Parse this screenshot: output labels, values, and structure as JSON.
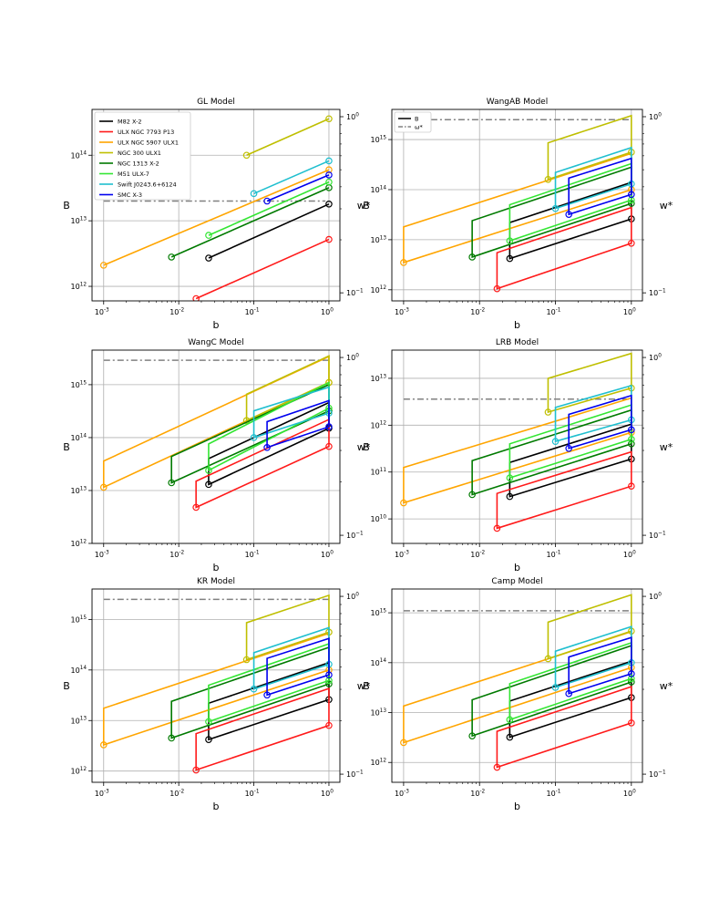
{
  "figure": {
    "legend_entries": [
      {
        "name": "M82 X-2",
        "color": "#000000"
      },
      {
        "name": "ULX NGC 7793 P13",
        "color": "#ff1a1a"
      },
      {
        "name": "ULX NGC 5907 ULX1",
        "color": "#ffa500"
      },
      {
        "name": "NGC 300 ULX1",
        "color": "#bfbf00"
      },
      {
        "name": "NGC 1313 X-2",
        "color": "#007a00"
      },
      {
        "name": "M51 ULX-7",
        "color": "#33e633"
      },
      {
        "name": "Swift J0243.6+6124",
        "color": "#1fbfcf"
      },
      {
        "name": "SMC X-3",
        "color": "#0000ee"
      }
    ],
    "legend_B": [
      {
        "name": "B",
        "style": "solid"
      },
      {
        "name": "ω*",
        "style": "dashdot"
      }
    ]
  },
  "chart_data": [
    {
      "type": "line",
      "title": "GL Model",
      "xlabel": "b",
      "ylabel": "B",
      "y2label": "w*",
      "xlim": [
        0.0007,
        1.4
      ],
      "ylim": [
        600000000000.0,
        500000000000000.0
      ],
      "y2lim": [
        0.09,
        1.1
      ],
      "yticks": [
        "10^12",
        "10^13",
        "10^14"
      ],
      "shape": "line",
      "omega": 20000000000000.0,
      "omega_xmax": 0.9,
      "series": [
        {
          "name": "M82 X-2",
          "b0": 0.025,
          "B0": 2700000000000.0,
          "B1": 18000000000000.0
        },
        {
          "name": "ULX NGC 7793 P13",
          "b0": 0.017,
          "B0": 650000000000.0,
          "B1": 5200000000000.0
        },
        {
          "name": "ULX NGC 5907 ULX1",
          "b0": 0.001,
          "B0": 2100000000000.0,
          "B1": 60000000000000.0
        },
        {
          "name": "NGC 300 ULX1",
          "b0": 0.08,
          "B0": 100000000000000.0,
          "B1": 360000000000000.0
        },
        {
          "name": "NGC 1313 X-2",
          "b0": 0.008,
          "B0": 2800000000000.0,
          "B1": 32000000000000.0
        },
        {
          "name": "M51 ULX-7",
          "b0": 0.025,
          "B0": 6000000000000.0,
          "B1": 39000000000000.0
        },
        {
          "name": "Swift J0243.6+6124",
          "b0": 0.1,
          "B0": 26000000000000.0,
          "B1": 82000000000000.0
        },
        {
          "name": "SMC X-3",
          "b0": 0.15,
          "B0": 20000000000000.0,
          "B1": 50000000000000.0
        }
      ]
    },
    {
      "type": "line",
      "title": "WangAB Model",
      "xlabel": "b",
      "ylabel": "B",
      "y2label": "w*",
      "xlim": [
        0.0007,
        1.4
      ],
      "ylim": [
        600000000000.0,
        4000000000000000.0
      ],
      "y2lim": [
        0.09,
        1.1
      ],
      "yticks": [
        "10^12",
        "10^13",
        "10^14",
        "10^15"
      ],
      "shape": "box",
      "omega": 2500000000000000.0,
      "omega_xmax": 1.0,
      "series": [
        {
          "name": "M82 X-2",
          "b0": 0.025,
          "Blo0": 4200000000000.0,
          "Bhi0": 22000000000000.0,
          "Blo1": 26000000000000.0,
          "Bhi1": 140000000000000.0
        },
        {
          "name": "ULX NGC 7793 P13",
          "b0": 0.017,
          "Blo0": 1050000000000.0,
          "Bhi0": 5500000000000.0,
          "Blo1": 8500000000000.0,
          "Bhi1": 44000000000000.0
        },
        {
          "name": "ULX NGC 5907 ULX1",
          "b0": 0.001,
          "Blo0": 3500000000000.0,
          "Bhi0": 18000000000000.0,
          "Blo1": 100000000000000.0,
          "Bhi1": 530000000000000.0
        },
        {
          "name": "NGC 300 ULX1",
          "b0": 0.08,
          "Blo0": 160000000000000.0,
          "Bhi0": 860000000000000.0,
          "Blo1": 560000000000000.0,
          "Bhi1": 3000000000000000.0
        },
        {
          "name": "NGC 1313 X-2",
          "b0": 0.008,
          "Blo0": 4500000000000.0,
          "Bhi0": 24000000000000.0,
          "Blo1": 53000000000000.0,
          "Bhi1": 280000000000000.0
        },
        {
          "name": "M51 ULX-7",
          "b0": 0.025,
          "Blo0": 9500000000000.0,
          "Bhi0": 50000000000000.0,
          "Blo1": 62000000000000.0,
          "Bhi1": 330000000000000.0
        },
        {
          "name": "Swift J0243.6+6124",
          "b0": 0.1,
          "Blo0": 42000000000000.0,
          "Bhi0": 220000000000000.0,
          "Blo1": 130000000000000.0,
          "Bhi1": 690000000000000.0
        },
        {
          "name": "SMC X-3",
          "b0": 0.15,
          "Blo0": 32000000000000.0,
          "Bhi0": 170000000000000.0,
          "Blo1": 80000000000000.0,
          "Bhi1": 420000000000000.0
        }
      ]
    },
    {
      "type": "line",
      "title": "WangC Model",
      "xlabel": "b",
      "ylabel": "B",
      "y2label": "w*",
      "xlim": [
        0.0007,
        1.4
      ],
      "ylim": [
        1000000000000.0,
        4500000000000000.0
      ],
      "y2lim": [
        0.09,
        1.1
      ],
      "yticks": [
        "10^12",
        "10^13",
        "10^14",
        "10^15"
      ],
      "shape": "box",
      "omega": 2900000000000000.0,
      "omega_xmax": 1.0,
      "series": [
        {
          "name": "M82 X-2",
          "b0": 0.025,
          "Blo0": 13000000000000.0,
          "Bhi0": 40000000000000.0,
          "Blo1": 150000000000000.0,
          "Bhi1": 460000000000000.0
        },
        {
          "name": "ULX NGC 7793 P13",
          "b0": 0.017,
          "Blo0": 4800000000000.0,
          "Bhi0": 15000000000000.0,
          "Blo1": 68000000000000.0,
          "Bhi1": 220000000000000.0
        },
        {
          "name": "ULX NGC 5907 ULX1",
          "b0": 0.001,
          "Blo0": 11500000000000.0,
          "Bhi0": 36000000000000.0,
          "Blo1": 1100000000000000.0,
          "Bhi1": 3400000000000000.0
        },
        {
          "name": "NGC 300 ULX1",
          "b0": 0.08,
          "Blo0": 210000000000000.0,
          "Bhi0": 660000000000000.0,
          "Blo1": 1100000000000000.0,
          "Bhi1": 3500000000000000.0
        },
        {
          "name": "NGC 1313 X-2",
          "b0": 0.008,
          "Blo0": 14000000000000.0,
          "Bhi0": 44000000000000.0,
          "Blo1": 320000000000000.0,
          "Bhi1": 1000000000000000.0
        },
        {
          "name": "M51 ULX-7",
          "b0": 0.025,
          "Blo0": 24000000000000.0,
          "Bhi0": 76000000000000.0,
          "Blo1": 360000000000000.0,
          "Bhi1": 1100000000000000.0
        },
        {
          "name": "Swift J0243.6+6124",
          "b0": 0.1,
          "Blo0": 100000000000000.0,
          "Bhi0": 320000000000000.0,
          "Blo1": 290000000000000.0,
          "Bhi1": 900000000000000.0
        },
        {
          "name": "SMC X-3",
          "b0": 0.15,
          "Blo0": 65000000000000.0,
          "Bhi0": 200000000000000.0,
          "Blo1": 160000000000000.0,
          "Bhi1": 500000000000000.0
        }
      ]
    },
    {
      "type": "line",
      "title": "LRB Model",
      "xlabel": "b",
      "ylabel": "B",
      "y2label": "w*",
      "xlim": [
        0.0007,
        1.4
      ],
      "ylim": [
        3000000000.0,
        40000000000000.0
      ],
      "y2lim": [
        0.09,
        1.1
      ],
      "yticks": [
        "10^10",
        "10^11",
        "10^12",
        "10^13"
      ],
      "shape": "box",
      "omega": 3600000000000.0,
      "omega_xmax": 1.0,
      "series": [
        {
          "name": "M82 X-2",
          "b0": 0.025,
          "Blo0": 30000000000.0,
          "Bhi0": 160000000000.0,
          "Blo1": 190000000000.0,
          "Bhi1": 1050000000000.0
        },
        {
          "name": "ULX NGC 7793 P13",
          "b0": 0.017,
          "Blo0": 6300000000.0,
          "Bhi0": 35000000000.0,
          "Blo1": 50000000000.0,
          "Bhi1": 270000000000.0
        },
        {
          "name": "ULX NGC 5907 ULX1",
          "b0": 0.001,
          "Blo0": 22000000000.0,
          "Bhi0": 125000000000.0,
          "Blo1": 700000000000.0,
          "Bhi1": 3800000000000.0
        },
        {
          "name": "NGC 300 ULX1",
          "b0": 0.08,
          "Blo0": 1900000000000.0,
          "Bhi0": 10000000000000.0,
          "Blo1": 6200000000000.0,
          "Bhi1": 34000000000000.0
        },
        {
          "name": "NGC 1313 X-2",
          "b0": 0.008,
          "Blo0": 33000000000.0,
          "Bhi0": 175000000000.0,
          "Blo1": 400000000000.0,
          "Bhi1": 2100000000000.0
        },
        {
          "name": "M51 ULX-7",
          "b0": 0.025,
          "Blo0": 75000000000.0,
          "Bhi0": 400000000000.0,
          "Blo1": 500000000000.0,
          "Bhi1": 2700000000000.0
        },
        {
          "name": "Swift J0243.6+6124",
          "b0": 0.1,
          "Blo0": 450000000000.0,
          "Bhi0": 2400000000000.0,
          "Blo1": 1300000000000.0,
          "Bhi1": 7000000000000.0
        },
        {
          "name": "SMC X-3",
          "b0": 0.15,
          "Blo0": 320000000000.0,
          "Bhi0": 1700000000000.0,
          "Blo1": 800000000000.0,
          "Bhi1": 4300000000000.0
        }
      ]
    },
    {
      "type": "line",
      "title": "KR Model",
      "xlabel": "b",
      "ylabel": "B",
      "y2label": "w*",
      "xlim": [
        0.0007,
        1.4
      ],
      "ylim": [
        600000000000.0,
        4000000000000000.0
      ],
      "y2lim": [
        0.09,
        1.1
      ],
      "yticks": [
        "10^12",
        "10^13",
        "10^14",
        "10^15"
      ],
      "shape": "box",
      "omega": 2500000000000000.0,
      "omega_xmax": 1.0,
      "series": [
        {
          "name": "M82 X-2",
          "b0": 0.025,
          "Blo0": 4200000000000.0,
          "Bhi0": 22000000000000.0,
          "Blo1": 26000000000000.0,
          "Bhi1": 140000000000000.0
        },
        {
          "name": "ULX NGC 7793 P13",
          "b0": 0.017,
          "Blo0": 1050000000000.0,
          "Bhi0": 5500000000000.0,
          "Blo1": 8000000000000.0,
          "Bhi1": 43000000000000.0
        },
        {
          "name": "ULX NGC 5907 ULX1",
          "b0": 0.001,
          "Blo0": 3300000000000.0,
          "Bhi0": 17500000000000.0,
          "Blo1": 100000000000000.0,
          "Bhi1": 530000000000000.0
        },
        {
          "name": "NGC 300 ULX1",
          "b0": 0.08,
          "Blo0": 160000000000000.0,
          "Bhi0": 860000000000000.0,
          "Blo1": 560000000000000.0,
          "Bhi1": 3000000000000000.0
        },
        {
          "name": "NGC 1313 X-2",
          "b0": 0.008,
          "Blo0": 4500000000000.0,
          "Bhi0": 24000000000000.0,
          "Blo1": 53000000000000.0,
          "Bhi1": 280000000000000.0
        },
        {
          "name": "M51 ULX-7",
          "b0": 0.025,
          "Blo0": 9500000000000.0,
          "Bhi0": 50000000000000.0,
          "Blo1": 62000000000000.0,
          "Bhi1": 330000000000000.0
        },
        {
          "name": "Swift J0243.6+6124",
          "b0": 0.1,
          "Blo0": 42000000000000.0,
          "Bhi0": 220000000000000.0,
          "Blo1": 130000000000000.0,
          "Bhi1": 690000000000000.0
        },
        {
          "name": "SMC X-3",
          "b0": 0.15,
          "Blo0": 32000000000000.0,
          "Bhi0": 170000000000000.0,
          "Blo1": 80000000000000.0,
          "Bhi1": 420000000000000.0
        }
      ]
    },
    {
      "type": "line",
      "title": "Camp Model",
      "xlabel": "b",
      "ylabel": "B",
      "y2label": "w*",
      "xlim": [
        0.0007,
        1.4
      ],
      "ylim": [
        400000000000.0,
        3000000000000000.0
      ],
      "y2lim": [
        0.09,
        1.1
      ],
      "yticks": [
        "10^12",
        "10^13",
        "10^14",
        "10^15"
      ],
      "shape": "box",
      "omega": 1100000000000000.0,
      "omega_xmax": 1.0,
      "series": [
        {
          "name": "M82 X-2",
          "b0": 0.025,
          "Blo0": 3200000000000.0,
          "Bhi0": 17000000000000.0,
          "Blo1": 20000000000000.0,
          "Bhi1": 107000000000000.0
        },
        {
          "name": "ULX NGC 7793 P13",
          "b0": 0.017,
          "Blo0": 800000000000.0,
          "Bhi0": 4200000000000.0,
          "Blo1": 6200000000000.0,
          "Bhi1": 33000000000000.0
        },
        {
          "name": "ULX NGC 5907 ULX1",
          "b0": 0.001,
          "Blo0": 2500000000000.0,
          "Bhi0": 13500000000000.0,
          "Blo1": 80000000000000.0,
          "Bhi1": 420000000000000.0
        },
        {
          "name": "NGC 300 ULX1",
          "b0": 0.08,
          "Blo0": 120000000000000.0,
          "Bhi0": 650000000000000.0,
          "Blo1": 430000000000000.0,
          "Bhi1": 2300000000000000.0
        },
        {
          "name": "NGC 1313 X-2",
          "b0": 0.008,
          "Blo0": 3400000000000.0,
          "Bhi0": 18000000000000.0,
          "Blo1": 41000000000000.0,
          "Bhi1": 220000000000000.0
        },
        {
          "name": "M51 ULX-7",
          "b0": 0.025,
          "Blo0": 7200000000000.0,
          "Bhi0": 38000000000000.0,
          "Blo1": 48000000000000.0,
          "Bhi1": 250000000000000.0
        },
        {
          "name": "Swift J0243.6+6124",
          "b0": 0.1,
          "Blo0": 32000000000000.0,
          "Bhi0": 170000000000000.0,
          "Blo1": 100000000000000.0,
          "Bhi1": 530000000000000.0
        },
        {
          "name": "SMC X-3",
          "b0": 0.15,
          "Blo0": 24000000000000.0,
          "Bhi0": 130000000000000.0,
          "Blo1": 60000000000000.0,
          "Bhi1": 320000000000000.0
        }
      ]
    }
  ]
}
